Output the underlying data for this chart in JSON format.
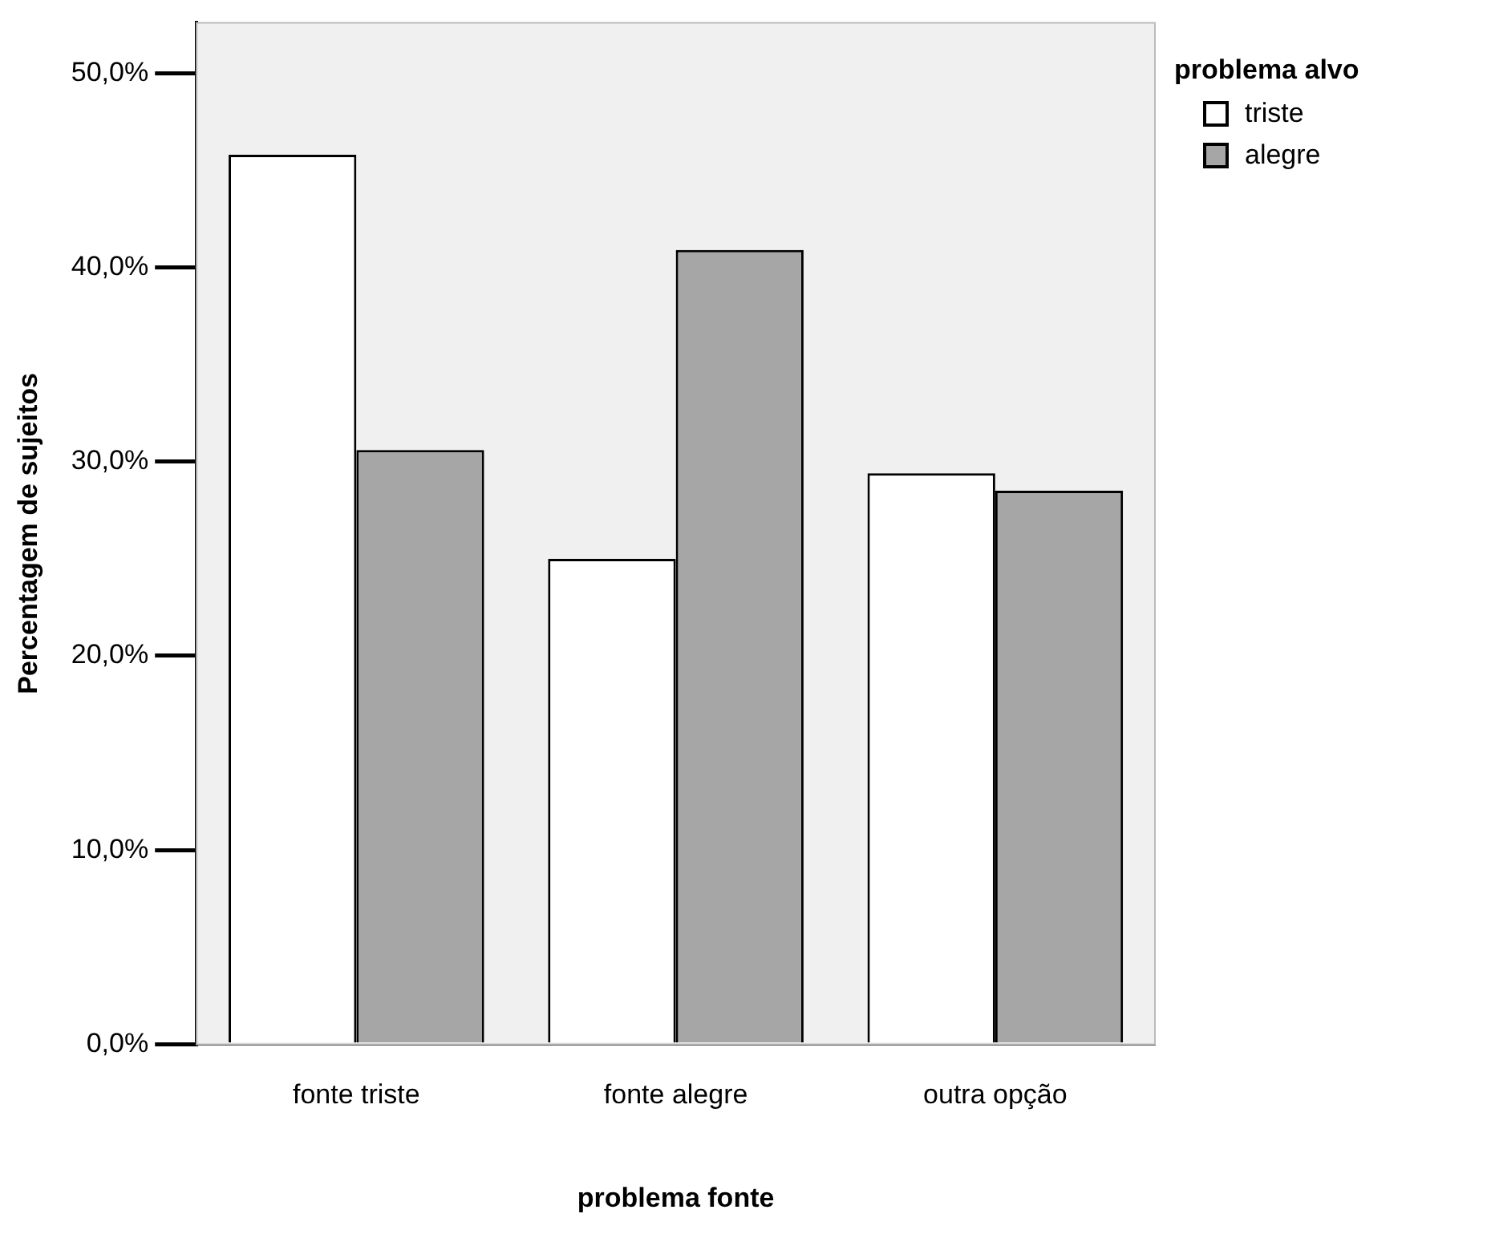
{
  "chart_data": {
    "type": "bar",
    "xlabel": "problema fonte",
    "ylabel": "Percentagem de sujeitos",
    "legend_title": "problema alvo",
    "categories": [
      "fonte triste",
      "fonte alegre",
      "outra opção"
    ],
    "series": [
      {
        "name": "triste",
        "color": "#ffffff",
        "values": [
          45.8,
          25.0,
          29.4
        ]
      },
      {
        "name": "alegre",
        "color": "#a6a6a6",
        "values": [
          30.6,
          40.9,
          28.5
        ]
      }
    ],
    "ylim": [
      0,
      52.6
    ],
    "yticks": [
      {
        "value": 0,
        "label": "0,0%"
      },
      {
        "value": 10,
        "label": "10,0%"
      },
      {
        "value": 20,
        "label": "20,0%"
      },
      {
        "value": 30,
        "label": "30,0%"
      },
      {
        "value": 40,
        "label": "40,0%"
      },
      {
        "value": 50,
        "label": "50,0%"
      }
    ],
    "grid": false,
    "legend": "top right"
  }
}
